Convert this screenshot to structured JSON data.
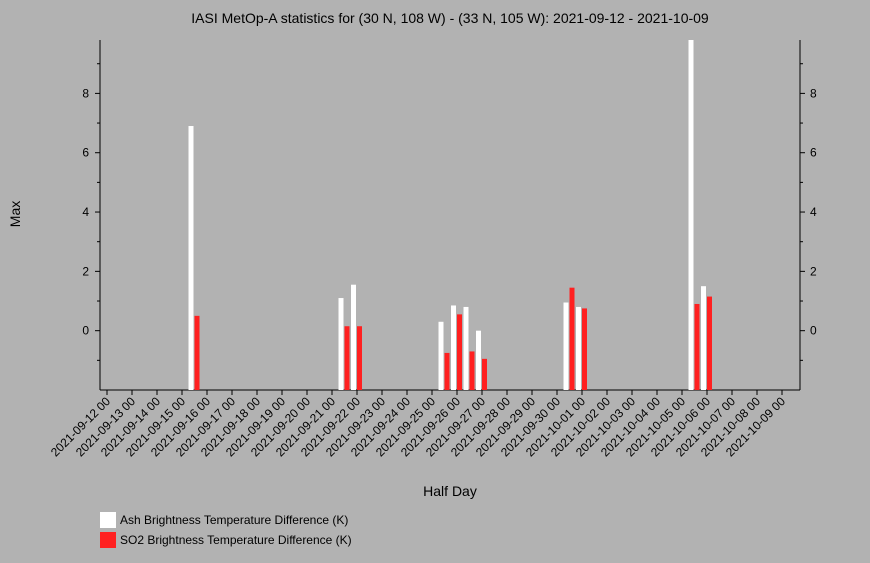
{
  "chart_data": {
    "type": "bar",
    "title": "IASI MetOp-A statistics for (30 N, 108 W) - (33 N, 105 W): 2021-09-12 - 2021-10-09",
    "xlabel": "Half Day",
    "ylabel": "Max",
    "ylim": [
      -2,
      9.8
    ],
    "yticks": [
      0,
      2,
      4,
      6,
      8
    ],
    "grid": false,
    "legend_position": "bottom-left",
    "x_tick_labels": [
      "2021-09-12 00",
      "2021-09-13 00",
      "2021-09-14 00",
      "2021-09-15 00",
      "2021-09-16 00",
      "2021-09-17 00",
      "2021-09-18 00",
      "2021-09-19 00",
      "2021-09-20 00",
      "2021-09-21 00",
      "2021-09-22 00",
      "2021-09-23 00",
      "2021-09-24 00",
      "2021-09-25 00",
      "2021-09-26 00",
      "2021-09-27 00",
      "2021-09-28 00",
      "2021-09-29 00",
      "2021-09-30 00",
      "2021-10-01 00",
      "2021-10-02 00",
      "2021-10-03 00",
      "2021-10-04 00",
      "2021-10-05 00",
      "2021-10-06 00",
      "2021-10-07 00",
      "2021-10-08 00",
      "2021-10-09 00"
    ],
    "series": [
      {
        "name": "Ash Brightness Temperature Difference (K)",
        "color": "#ffffff",
        "points": [
          {
            "x": 3.5,
            "value": 6.9
          },
          {
            "x": 9.5,
            "value": 1.1
          },
          {
            "x": 10.0,
            "value": 1.55
          },
          {
            "x": 13.5,
            "value": 0.3
          },
          {
            "x": 14.0,
            "value": 0.85
          },
          {
            "x": 14.5,
            "value": 0.8
          },
          {
            "x": 15.0,
            "value": 0.0
          },
          {
            "x": 18.5,
            "value": 0.95
          },
          {
            "x": 19.0,
            "value": 0.8
          },
          {
            "x": 23.5,
            "value": 9.8
          },
          {
            "x": 24.0,
            "value": 1.5
          }
        ]
      },
      {
        "name": "SO2 Brightness Temperature Difference (K)",
        "color": "#ff2020",
        "points": [
          {
            "x": 3.5,
            "value": 0.5
          },
          {
            "x": 9.5,
            "value": 0.15
          },
          {
            "x": 10.0,
            "value": 0.15
          },
          {
            "x": 13.5,
            "value": -0.75
          },
          {
            "x": 14.0,
            "value": 0.55
          },
          {
            "x": 14.5,
            "value": -0.7
          },
          {
            "x": 15.0,
            "value": -0.95
          },
          {
            "x": 18.5,
            "value": 1.45
          },
          {
            "x": 19.0,
            "value": 0.75
          },
          {
            "x": 23.5,
            "value": 0.9
          },
          {
            "x": 24.0,
            "value": 1.15
          }
        ]
      }
    ]
  }
}
